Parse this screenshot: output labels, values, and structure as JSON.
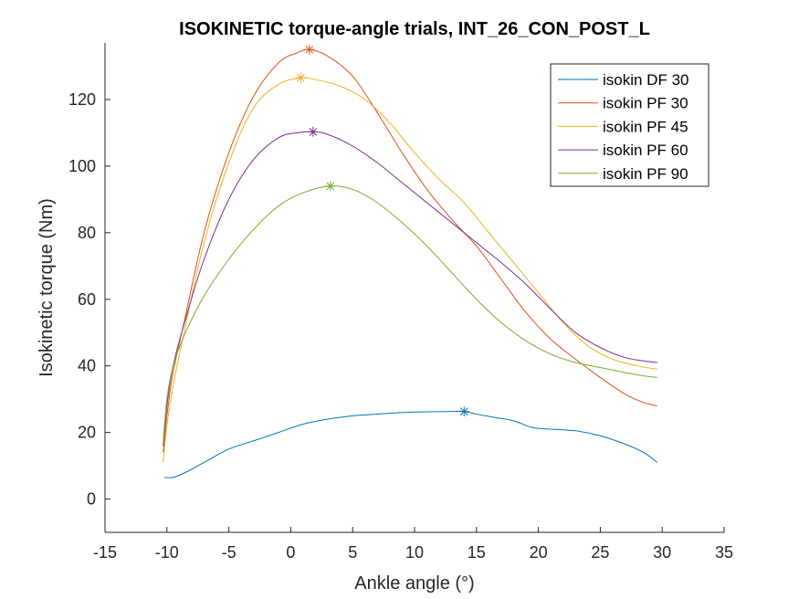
{
  "chart_data": {
    "type": "line",
    "title": "ISOKINETIC torque-angle trials, INT_26_CON_POST_L",
    "xlabel": "Ankle angle (°)",
    "ylabel": "Isokinetic torque (Nm)",
    "xlim": [
      -15,
      35
    ],
    "ylim": [
      -10,
      137
    ],
    "xticks": [
      -15,
      -10,
      -5,
      0,
      5,
      10,
      15,
      20,
      25,
      30,
      35
    ],
    "yticks": [
      0,
      20,
      40,
      60,
      80,
      100,
      120
    ],
    "grid": false,
    "legend_position": "top-right",
    "series": [
      {
        "name": "isokin DF 30",
        "color": "#0072BD",
        "x": [
          -10.2,
          -9.5,
          -8.5,
          -7.0,
          -5.0,
          -3.0,
          -1.0,
          1.0,
          3.0,
          5.0,
          7.0,
          9.0,
          11.0,
          13.0,
          14.0,
          15.0,
          16.5,
          18.0,
          19.5,
          21.0,
          23.0,
          25.0,
          27.0,
          28.5,
          29.6
        ],
        "y": [
          6.5,
          6.5,
          8.0,
          11.0,
          15.0,
          17.5,
          20.0,
          22.5,
          24.0,
          25.0,
          25.5,
          26.0,
          26.2,
          26.3,
          26.3,
          25.5,
          24.5,
          23.5,
          21.5,
          21.0,
          20.5,
          19.0,
          16.5,
          14.0,
          11.0
        ],
        "peak": {
          "x": 14.0,
          "y": 26.3
        }
      },
      {
        "name": "isokin PF 30",
        "color": "#D95319",
        "x": [
          -10.3,
          -10.0,
          -9.5,
          -8.5,
          -7.0,
          -5.0,
          -3.0,
          -1.0,
          0.5,
          1.5,
          3.0,
          5.0,
          7.0,
          9.0,
          11.0,
          13.0,
          15.0,
          17.0,
          19.0,
          21.0,
          23.0,
          25.0,
          27.0,
          28.5,
          29.6
        ],
        "y": [
          14.0,
          25.0,
          38.0,
          55.0,
          80.0,
          104.0,
          121.0,
          131.0,
          134.0,
          135.0,
          133.0,
          127.0,
          116.0,
          104.0,
          93.0,
          84.0,
          76.0,
          66.0,
          56.0,
          48.0,
          42.0,
          36.5,
          31.5,
          29.0,
          28.0
        ],
        "peak": {
          "x": 1.5,
          "y": 135.0
        }
      },
      {
        "name": "isokin PF 45",
        "color": "#EDB120",
        "x": [
          -10.3,
          -10.0,
          -9.5,
          -8.5,
          -7.0,
          -5.0,
          -3.0,
          -1.0,
          0.8,
          2.0,
          4.0,
          6.0,
          8.0,
          10.0,
          12.0,
          14.0,
          16.0,
          18.0,
          20.0,
          22.0,
          24.0,
          26.0,
          28.0,
          29.6
        ],
        "y": [
          11.0,
          22.0,
          34.0,
          52.0,
          77.0,
          101.0,
          117.5,
          124.5,
          126.5,
          126.0,
          124.0,
          120.0,
          113.0,
          104.0,
          96.0,
          89.0,
          80.0,
          71.0,
          62.0,
          53.0,
          46.0,
          42.0,
          40.0,
          39.0
        ],
        "peak": {
          "x": 0.8,
          "y": 126.5
        }
      },
      {
        "name": "isokin PF 60",
        "color": "#7E2F8E",
        "x": [
          -10.3,
          -10.0,
          -9.5,
          -8.5,
          -7.0,
          -5.0,
          -3.0,
          -1.0,
          0.5,
          1.8,
          3.0,
          5.0,
          7.0,
          9.0,
          11.0,
          13.0,
          15.0,
          17.0,
          19.0,
          21.0,
          23.0,
          25.0,
          27.0,
          28.5,
          29.6
        ],
        "y": [
          16.0,
          28.0,
          40.0,
          54.0,
          72.0,
          90.0,
          102.0,
          108.5,
          110.0,
          110.3,
          109.5,
          106.0,
          101.0,
          95.0,
          89.0,
          83.0,
          77.0,
          71.0,
          64.5,
          57.0,
          50.0,
          45.5,
          42.5,
          41.5,
          41.0
        ],
        "peak": {
          "x": 1.8,
          "y": 110.3
        }
      },
      {
        "name": "isokin PF 90",
        "color": "#77AC30",
        "x": [
          -10.3,
          -10.0,
          -9.5,
          -8.5,
          -7.0,
          -5.0,
          -3.0,
          -1.0,
          1.0,
          3.2,
          5.0,
          7.0,
          9.0,
          11.0,
          13.0,
          15.0,
          17.0,
          19.0,
          21.0,
          23.0,
          25.0,
          27.0,
          28.5,
          29.6
        ],
        "y": [
          17.0,
          30.0,
          40.0,
          50.0,
          61.0,
          72.0,
          81.0,
          88.0,
          92.0,
          94.0,
          93.0,
          89.0,
          83.0,
          76.0,
          68.0,
          60.0,
          53.0,
          47.5,
          43.5,
          41.0,
          39.5,
          38.0,
          37.0,
          36.5
        ],
        "peak": {
          "x": 3.2,
          "y": 94.0
        }
      }
    ]
  }
}
